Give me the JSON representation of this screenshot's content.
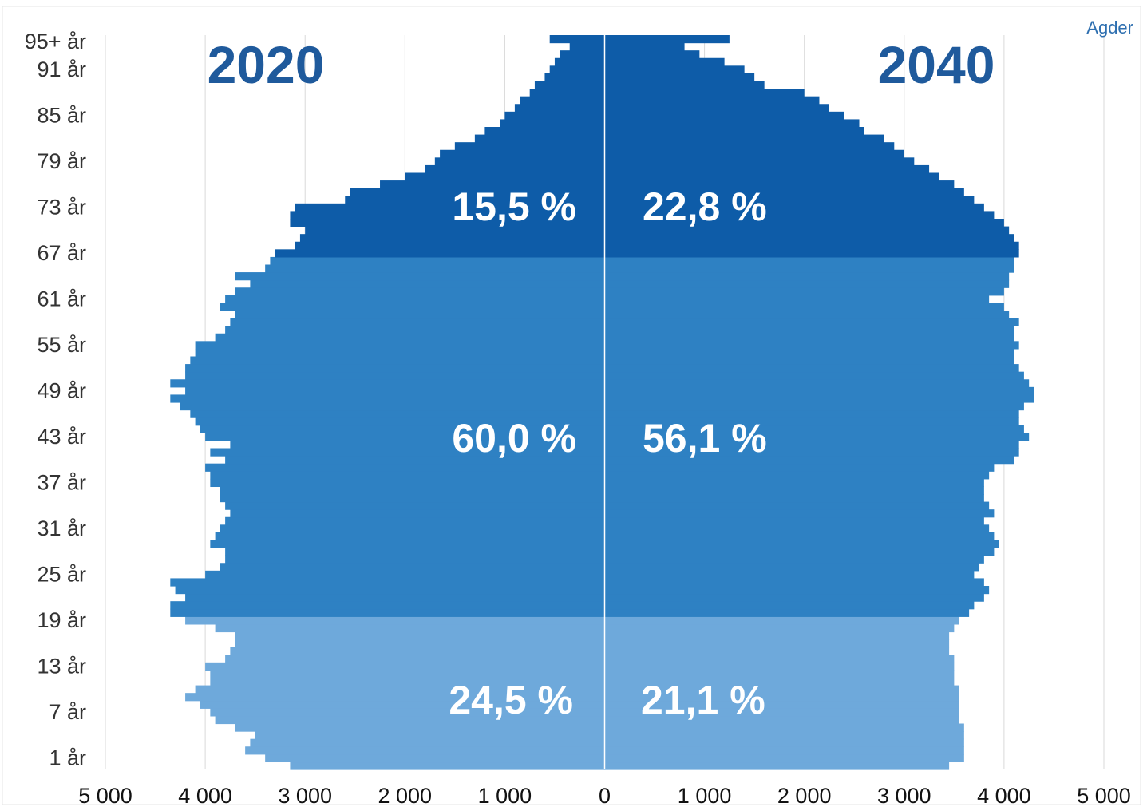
{
  "chart_data": {
    "type": "bar",
    "subtype": "population-pyramid",
    "region_label": "Agder",
    "x_axis": {
      "min": -5000,
      "max": 5000,
      "ticks": [
        -5000,
        -4000,
        -3000,
        -2000,
        -1000,
        0,
        1000,
        2000,
        3000,
        4000,
        5000
      ],
      "tick_labels": [
        "5 000",
        "4 000",
        "3 000",
        "2 000",
        "1 000",
        "0",
        "1 000",
        "2 000",
        "3 000",
        "4 000",
        "5 000"
      ],
      "grid": true
    },
    "y_axis": {
      "tick_labels": [
        "1 år",
        "7 år",
        "13 år",
        "19 år",
        "25 år",
        "31 år",
        "37 år",
        "43 år",
        "49 år",
        "55 år",
        "61 år",
        "67 år",
        "73 år",
        "79 år",
        "85 år",
        "91 år",
        "95+ år"
      ],
      "tick_ages": [
        1,
        7,
        13,
        19,
        25,
        31,
        37,
        43,
        49,
        55,
        61,
        67,
        73,
        79,
        85,
        91,
        95
      ]
    },
    "ages": [
      0,
      1,
      2,
      3,
      4,
      5,
      6,
      7,
      8,
      9,
      10,
      11,
      12,
      13,
      14,
      15,
      16,
      17,
      18,
      19,
      20,
      21,
      22,
      23,
      24,
      25,
      26,
      27,
      28,
      29,
      30,
      31,
      32,
      33,
      34,
      35,
      36,
      37,
      38,
      39,
      40,
      41,
      42,
      43,
      44,
      45,
      46,
      47,
      48,
      49,
      50,
      51,
      52,
      53,
      54,
      55,
      56,
      57,
      58,
      59,
      60,
      61,
      62,
      63,
      64,
      65,
      66,
      67,
      68,
      69,
      70,
      71,
      72,
      73,
      74,
      75,
      76,
      77,
      78,
      79,
      80,
      81,
      82,
      83,
      84,
      85,
      86,
      87,
      88,
      89,
      90,
      91,
      92,
      93,
      94,
      95
    ],
    "age_group_breaks": [
      19,
      66
    ],
    "group_colors": [
      "#6ea9db",
      "#2e81c3",
      "#0e5ca8"
    ],
    "background": "#ffffff",
    "center_line_color": "#ffffff",
    "series": [
      {
        "name": "2020",
        "side": "left",
        "values": [
          3150,
          3400,
          3600,
          3550,
          3500,
          3700,
          3900,
          3950,
          4050,
          4200,
          4100,
          3950,
          3950,
          4000,
          3800,
          3750,
          3700,
          3700,
          3900,
          4200,
          4350,
          4350,
          4200,
          4300,
          4350,
          4000,
          3850,
          3800,
          3800,
          3950,
          3900,
          3850,
          3800,
          3750,
          3800,
          3850,
          3850,
          3950,
          3950,
          4000,
          3800,
          3950,
          3750,
          4000,
          4050,
          4100,
          4150,
          4250,
          4350,
          4200,
          4350,
          4200,
          4200,
          4150,
          4100,
          4100,
          3900,
          3800,
          3750,
          3700,
          3850,
          3800,
          3700,
          3550,
          3700,
          3400,
          3350,
          3300,
          3100,
          3050,
          3000,
          3150,
          3150,
          3100,
          2600,
          2550,
          2250,
          2000,
          1800,
          1700,
          1650,
          1500,
          1300,
          1200,
          1050,
          1000,
          900,
          850,
          750,
          700,
          600,
          550,
          500,
          450,
          350,
          550
        ]
      },
      {
        "name": "2040",
        "side": "right",
        "values": [
          3450,
          3600,
          3600,
          3600,
          3600,
          3600,
          3550,
          3550,
          3550,
          3550,
          3550,
          3500,
          3500,
          3500,
          3500,
          3450,
          3450,
          3450,
          3500,
          3550,
          3650,
          3700,
          3800,
          3850,
          3800,
          3700,
          3750,
          3800,
          3900,
          3950,
          3900,
          3850,
          3800,
          3900,
          3850,
          3800,
          3800,
          3800,
          3850,
          3900,
          4100,
          4150,
          4150,
          4250,
          4200,
          4150,
          4150,
          4200,
          4300,
          4300,
          4250,
          4200,
          4150,
          4100,
          4100,
          4150,
          4100,
          4100,
          4150,
          4050,
          4000,
          3850,
          4000,
          4050,
          4050,
          4100,
          4100,
          4150,
          4150,
          4100,
          4050,
          4000,
          3900,
          3800,
          3700,
          3600,
          3500,
          3350,
          3250,
          3100,
          3000,
          2900,
          2800,
          2600,
          2550,
          2400,
          2250,
          2150,
          2000,
          1600,
          1500,
          1400,
          1200,
          950,
          800,
          1250
        ]
      }
    ],
    "year_labels": {
      "left": "2020",
      "right": "2040"
    },
    "group_shares": {
      "left": [
        "24,5 %",
        "60,0 %",
        "15,5 %"
      ],
      "right": [
        "21,1 %",
        "56,1 %",
        "22,8 %"
      ]
    }
  }
}
